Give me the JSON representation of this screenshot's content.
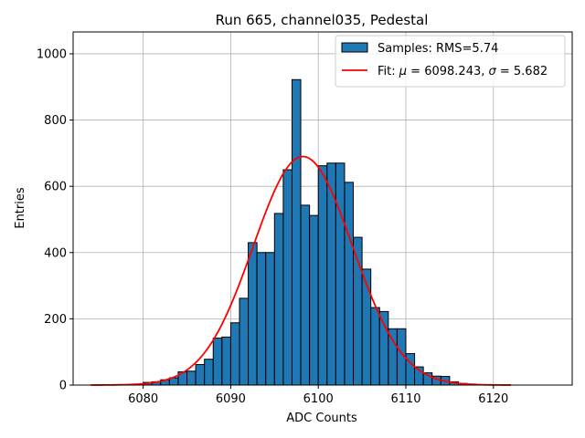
{
  "chart_data": {
    "type": "bar",
    "title": "Run 665, channel035, Pedestal",
    "xlabel": "ADC Counts",
    "ylabel": "Entries",
    "xlim": [
      6072,
      6129
    ],
    "ylim": [
      0,
      1066
    ],
    "xticks": [
      6080,
      6090,
      6100,
      6110,
      6120
    ],
    "yticks": [
      0,
      200,
      400,
      600,
      800,
      1000
    ],
    "grid": true,
    "legend_position": "top-right",
    "colors": {
      "bars": "#1f77b4",
      "bar_edge": "#000000",
      "fit": "#ff0000",
      "grid": "#b0b0b0"
    },
    "histogram": {
      "name": "Samples: RMS=5.74",
      "bin_width": 1,
      "bins": [
        {
          "x": 6080,
          "count": 8
        },
        {
          "x": 6081,
          "count": 10
        },
        {
          "x": 6082,
          "count": 16
        },
        {
          "x": 6083,
          "count": 22
        },
        {
          "x": 6084,
          "count": 40
        },
        {
          "x": 6085,
          "count": 42
        },
        {
          "x": 6086,
          "count": 62
        },
        {
          "x": 6087,
          "count": 78
        },
        {
          "x": 6088,
          "count": 142
        },
        {
          "x": 6089,
          "count": 145
        },
        {
          "x": 6090,
          "count": 188
        },
        {
          "x": 6091,
          "count": 262
        },
        {
          "x": 6092,
          "count": 430
        },
        {
          "x": 6093,
          "count": 400
        },
        {
          "x": 6094,
          "count": 400
        },
        {
          "x": 6095,
          "count": 518
        },
        {
          "x": 6096,
          "count": 650
        },
        {
          "x": 6097,
          "count": 922
        },
        {
          "x": 6098,
          "count": 543
        },
        {
          "x": 6099,
          "count": 512
        },
        {
          "x": 6100,
          "count": 662
        },
        {
          "x": 6101,
          "count": 670
        },
        {
          "x": 6102,
          "count": 670
        },
        {
          "x": 6103,
          "count": 612
        },
        {
          "x": 6104,
          "count": 446
        },
        {
          "x": 6105,
          "count": 350
        },
        {
          "x": 6106,
          "count": 234
        },
        {
          "x": 6107,
          "count": 222
        },
        {
          "x": 6108,
          "count": 170
        },
        {
          "x": 6109,
          "count": 170
        },
        {
          "x": 6110,
          "count": 95
        },
        {
          "x": 6111,
          "count": 55
        },
        {
          "x": 6112,
          "count": 37
        },
        {
          "x": 6113,
          "count": 27
        },
        {
          "x": 6114,
          "count": 26
        },
        {
          "x": 6115,
          "count": 10
        },
        {
          "x": 6116,
          "count": 5
        },
        {
          "x": 6117,
          "count": 3
        }
      ]
    },
    "fit": {
      "name": "Fit: μ = 6098.243, σ = 5.682",
      "label_prefix": "Fit: ",
      "mu_symbol": "μ",
      "mu_text": " = 6098.243, ",
      "sigma_symbol": "σ",
      "sigma_text": " = 5.682",
      "mu": 6098.243,
      "sigma": 5.682,
      "amplitude": 690,
      "x_range": [
        6074,
        6122
      ]
    }
  }
}
